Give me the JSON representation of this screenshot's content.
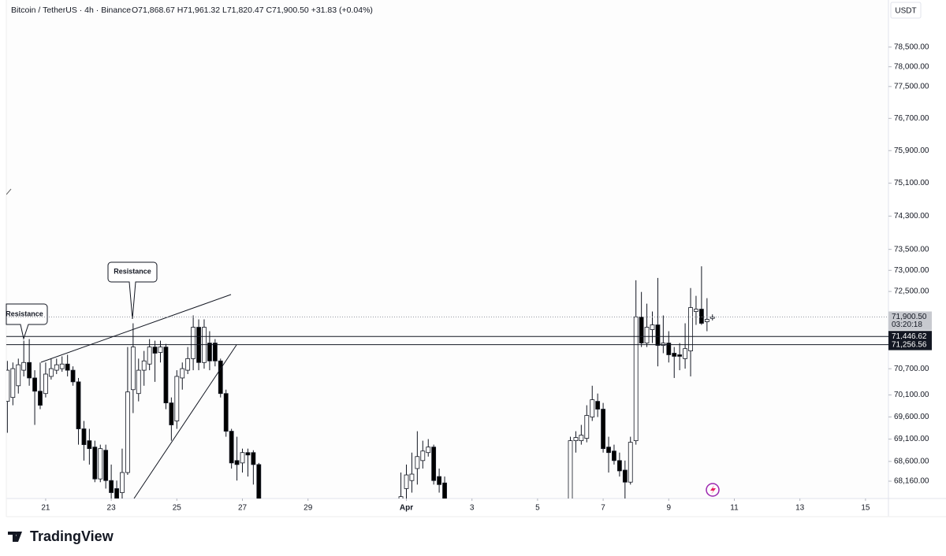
{
  "header": {
    "title": "Bitcoin / TetherUS · 4h · Binance",
    "ohlc": "O71,868.67 H71,961.32 L71,820.47 C71,900.50 +31.83 (+0.04%)",
    "currency": "USDT",
    "brand": "TradingView"
  },
  "chart_data": {
    "type": "candlestick",
    "log": true,
    "up_color": "#ffffff",
    "down_color": "#000000",
    "xlim": [
      19.8,
      46.7
    ],
    "xticks": [
      21,
      23,
      25,
      27,
      29,
      {
        "value": 32,
        "label": "Apr"
      },
      {
        "value": 34,
        "label": "3"
      },
      {
        "value": 36,
        "label": "5"
      },
      {
        "value": 38,
        "label": "7"
      },
      {
        "value": 40,
        "label": "9"
      },
      {
        "value": 42,
        "label": "11"
      },
      {
        "value": 44,
        "label": "13"
      },
      {
        "value": 46,
        "label": "15"
      }
    ],
    "ylim": [
      67777,
      79712
    ],
    "yticks": [
      {
        "value": 78500,
        "label": "78,500.00"
      },
      {
        "value": 78000,
        "label": "78,000.00"
      },
      {
        "value": 77500,
        "label": "77,500.00"
      },
      {
        "value": 76700,
        "label": "76,700.00"
      },
      {
        "value": 75900,
        "label": "75,900.00"
      },
      {
        "value": 75100,
        "label": "75,100.00"
      },
      {
        "value": 74300,
        "label": "74,300.00"
      },
      {
        "value": 73500,
        "label": "73,500.00"
      },
      {
        "value": 73000,
        "label": "73,000.00"
      },
      {
        "value": 72500,
        "label": "72,500.00"
      },
      {
        "value": 70700,
        "label": "70,700.00"
      },
      {
        "value": 70100,
        "label": "70,100.00"
      },
      {
        "value": 69600,
        "label": "69,600.00"
      },
      {
        "value": 69100,
        "label": "69,100.00"
      },
      {
        "value": 68600,
        "label": "68,600.00"
      },
      {
        "value": 68160,
        "label": "68,160.00"
      }
    ],
    "last_price": {
      "value": 71900.5,
      "label": "71,900.50"
    },
    "countdown": "03:20:18",
    "price_lines": [
      {
        "value": 71446.62,
        "label": "71,446.62"
      },
      {
        "value": 71256.56,
        "label": "71,256.56"
      }
    ],
    "annotations": [
      "Resistance",
      "Resistance"
    ],
    "candles": {
      "x": [
        19.833,
        20,
        20.167,
        20.333,
        20.5,
        20.667,
        20.833,
        21,
        21.167,
        21.333,
        21.5,
        21.667,
        21.833,
        22,
        22.167,
        22.333,
        22.5,
        22.667,
        22.833,
        23,
        23.167,
        23.333,
        23.5,
        23.667,
        23.833,
        24,
        24.167,
        24.333,
        24.5,
        24.667,
        24.833,
        25,
        25.167,
        25.333,
        25.5,
        25.667,
        25.833,
        26,
        26.167,
        26.333,
        26.5,
        26.667,
        26.833,
        27,
        27.167,
        27.333,
        27.5,
        31.833,
        32,
        32.167,
        32.333,
        32.5,
        32.667,
        32.833,
        33,
        33.167,
        37,
        37.167,
        37.333,
        37.5,
        37.667,
        37.833,
        38,
        38.167,
        38.333,
        38.5,
        38.667,
        38.833,
        39,
        39.167,
        39.333,
        39.5,
        39.667,
        39.833,
        40,
        40.167,
        40.333,
        40.5,
        40.667,
        40.833,
        41,
        41.167,
        41.333
      ],
      "open": [
        69954,
        70043,
        70310,
        70666,
        70844,
        70488,
        70185,
        70132,
        70524,
        70666,
        70702,
        70808,
        70666,
        70399,
        69331,
        69064,
        68921,
        68210,
        68850,
        68174,
        67996,
        67907,
        68352,
        70221,
        70132,
        70666,
        70808,
        71201,
        71075,
        71201,
        69918,
        69509,
        70488,
        70666,
        70933,
        71661,
        70844,
        71293,
        71293,
        70880,
        70132,
        69277,
        68619,
        68566,
        68797,
        68797,
        68530,
        67700,
        67996,
        68174,
        68441,
        68619,
        68797,
        68921,
        68263,
        68121,
        67700,
        69064,
        69064,
        69117,
        69598,
        69954,
        69776,
        68921,
        68832,
        68619,
        68406,
        68139,
        69064,
        71900,
        71293,
        71606,
        71716,
        71238,
        71293,
        71058,
        71022,
        70933,
        71111,
        72029,
        72084,
        71790,
        71868.67
      ],
      "high": [
        70880,
        70844,
        70933,
        71348,
        71385,
        70666,
        70844,
        70844,
        70933,
        70933,
        70986,
        71022,
        70755,
        70488,
        69509,
        69331,
        69064,
        68975,
        68975,
        68530,
        68174,
        68886,
        71201,
        71753,
        70933,
        71111,
        71385,
        71348,
        71348,
        71274,
        70043,
        70666,
        70844,
        71201,
        71937,
        71845,
        71845,
        71569,
        71385,
        70933,
        70221,
        69331,
        69153,
        68886,
        68886,
        68850,
        68566,
        68352,
        68530,
        68797,
        69277,
        69064,
        69100,
        68975,
        68441,
        68263,
        69153,
        69277,
        69420,
        69865,
        70310,
        70132,
        69918,
        69153,
        68975,
        68797,
        68619,
        69153,
        72765,
        72489,
        72213,
        72029,
        72820,
        71937,
        71569,
        71201,
        71293,
        71753,
        72581,
        72397,
        73096,
        72342,
        71961.32
      ],
      "low": [
        69242,
        69865,
        70132,
        70524,
        70310,
        69420,
        69776,
        70043,
        70452,
        70577,
        70630,
        70524,
        70310,
        68975,
        68619,
        68530,
        68138,
        68138,
        67996,
        67600,
        67600,
        67600,
        68299,
        69687,
        69954,
        70310,
        70666,
        70399,
        70844,
        69776,
        69064,
        69331,
        70221,
        70577,
        70666,
        70666,
        70702,
        70666,
        70755,
        70043,
        69153,
        68441,
        68174,
        68352,
        68263,
        68085,
        67500,
        67600,
        67650,
        67907,
        68085,
        68441,
        68708,
        68085,
        67907,
        67600,
        67600,
        68797,
        68975,
        69028,
        69509,
        69598,
        68797,
        68352,
        68530,
        68263,
        67600,
        68085,
        68975,
        71201,
        71201,
        71293,
        70755,
        71058,
        70844,
        70488,
        70666,
        70702,
        70524,
        71716,
        71716,
        71569,
        71820.47
      ],
      "close": [
        70666,
        70702,
        70791,
        70844,
        70488,
        70185,
        69865,
        70577,
        70702,
        70791,
        70808,
        70666,
        70399,
        69331,
        68975,
        68886,
        68210,
        68886,
        68174,
        67907,
        67782,
        68352,
        70168,
        71201,
        70666,
        70880,
        71201,
        71058,
        71201,
        69918,
        69420,
        70524,
        70702,
        70933,
        71661,
        70844,
        71661,
        70880,
        70880,
        70132,
        69277,
        68566,
        68530,
        68797,
        68743,
        68530,
        67600,
        67818,
        68299,
        68317,
        68708,
        68832,
        68921,
        68174,
        68085,
        67650,
        69064,
        69135,
        69189,
        69634,
        69990,
        69776,
        68886,
        68797,
        68619,
        68389,
        68139,
        69028,
        71900,
        71293,
        71661,
        71716,
        71238,
        71293,
        71022,
        70986,
        70986,
        71164,
        72121,
        72084,
        71753,
        71845,
        71900.5
      ]
    }
  }
}
